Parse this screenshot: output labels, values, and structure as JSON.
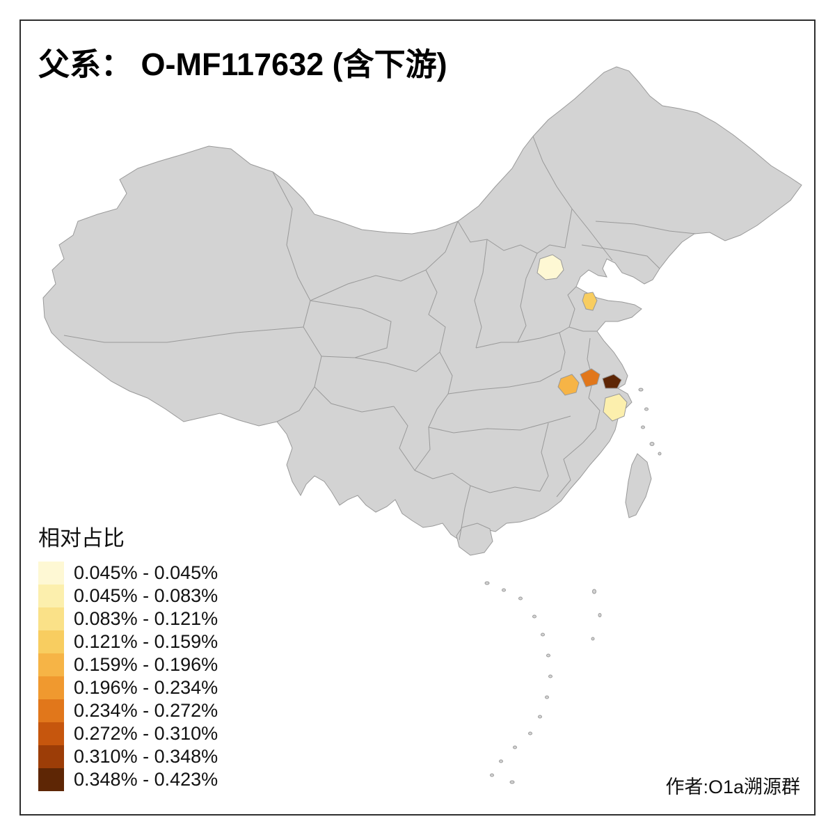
{
  "title": "父系： O-MF117632 (含下游)",
  "author": "作者:O1a溯源群",
  "legend": {
    "title": "相对占比",
    "bins": [
      {
        "label": "0.045% - 0.045%",
        "color": "#FEF8D4"
      },
      {
        "label": "0.045% - 0.083%",
        "color": "#FCEFAD"
      },
      {
        "label": "0.083% - 0.121%",
        "color": "#FAE188"
      },
      {
        "label": "0.121% - 0.159%",
        "color": "#F8CD60"
      },
      {
        "label": "0.159% - 0.196%",
        "color": "#F6B446"
      },
      {
        "label": "0.196% - 0.234%",
        "color": "#F0992F"
      },
      {
        "label": "0.234% - 0.272%",
        "color": "#E1771B"
      },
      {
        "label": "0.272% - 0.310%",
        "color": "#C6560D"
      },
      {
        "label": "0.310% - 0.348%",
        "color": "#9C3D07"
      },
      {
        "label": "0.348% - 0.423%",
        "color": "#5E2605"
      }
    ]
  },
  "map": {
    "land_color": "#D3D3D3",
    "border_color": "#999999",
    "sea_color": "#FFFFFF",
    "regions": [
      {
        "id": "region-1",
        "color": "#FEF8D4"
      },
      {
        "id": "region-2",
        "color": "#F8CD60"
      },
      {
        "id": "region-3",
        "color": "#F6B446"
      },
      {
        "id": "region-4",
        "color": "#E1771B"
      },
      {
        "id": "region-5",
        "color": "#5E2605"
      },
      {
        "id": "region-6",
        "color": "#FCEFAD"
      }
    ]
  },
  "chart_data": {
    "type": "choropleth",
    "title": "父系： O-MF117632 (含下游)",
    "legend_title": "相对占比",
    "value_range": [
      "0.045%",
      "0.423%"
    ],
    "bins": [
      {
        "range": "0.045% - 0.045%",
        "color": "#FEF8D4"
      },
      {
        "range": "0.045% - 0.083%",
        "color": "#FCEFAD"
      },
      {
        "range": "0.083% - 0.121%",
        "color": "#FAE188"
      },
      {
        "range": "0.121% - 0.159%",
        "color": "#F8CD60"
      },
      {
        "range": "0.159% - 0.196%",
        "color": "#F6B446"
      },
      {
        "range": "0.196% - 0.234%",
        "color": "#F0992F"
      },
      {
        "range": "0.234% - 0.272%",
        "color": "#E1771B"
      },
      {
        "range": "0.272% - 0.310%",
        "color": "#C6560D"
      },
      {
        "range": "0.310% - 0.348%",
        "color": "#9C3D07"
      },
      {
        "range": "0.348% - 0.423%",
        "color": "#5E2605"
      }
    ],
    "highlighted_region_colors": [
      "#FEF8D4",
      "#F8CD60",
      "#F6B446",
      "#E1771B",
      "#5E2605",
      "#FCEFAD"
    ]
  }
}
